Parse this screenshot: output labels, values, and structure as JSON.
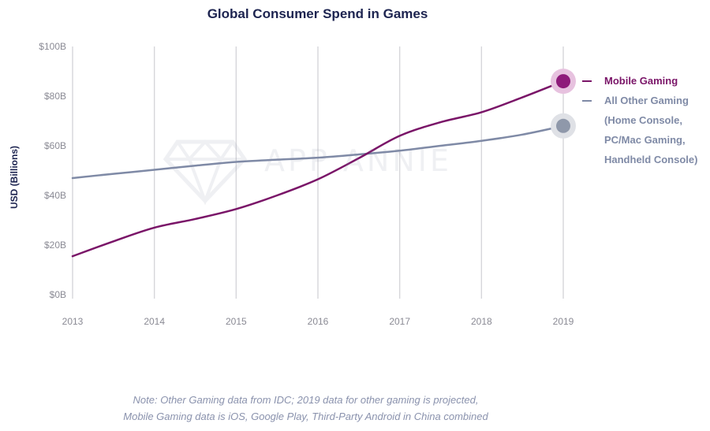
{
  "chart_data": {
    "type": "line",
    "title": "Global Consumer Spend in Games",
    "xlabel": "",
    "ylabel": "USD (Billions)",
    "x": [
      2013,
      2014,
      2015,
      2016,
      2017,
      2018,
      2019
    ],
    "xlim": [
      2013,
      2019
    ],
    "ylim": [
      0,
      100
    ],
    "x_tick_labels": [
      "2013",
      "2014",
      "2015",
      "2016",
      "2017",
      "2018",
      "2019"
    ],
    "y_tick_values": [
      0,
      20,
      40,
      60,
      80,
      100
    ],
    "y_tick_labels": [
      "$0B",
      "$20B",
      "$40B",
      "$60B",
      "$80B",
      "$100B"
    ],
    "grid": "vertical",
    "legend_position": "right",
    "series": [
      {
        "name": "Mobile Gaming",
        "color": "#7a1568",
        "marker_color": "#8e1a7a",
        "marker_halo": "#e7c2df",
        "x": [
          2013,
          2013.5,
          2014,
          2014.5,
          2015,
          2015.5,
          2016,
          2016.5,
          2017,
          2017.5,
          2018,
          2018.5,
          2019
        ],
        "values": [
          15.5,
          21.5,
          27,
          30.5,
          34.5,
          40,
          46.5,
          55,
          64,
          69.5,
          73.5,
          79.5,
          86
        ]
      },
      {
        "name": "All Other Gaming\n(Home Console,\nPC/Mac Gaming,\nHandheld Console)",
        "color": "#7f8aa6",
        "marker_color": "#8f98aa",
        "marker_halo": "#dfe1e6",
        "x": [
          2013,
          2013.5,
          2014,
          2014.5,
          2015,
          2015.5,
          2016,
          2016.5,
          2017,
          2017.5,
          2018,
          2018.5,
          2019
        ],
        "values": [
          47,
          48.7,
          50.3,
          52,
          53.5,
          54.4,
          55.2,
          56.5,
          58,
          60,
          62,
          64.5,
          68
        ]
      }
    ],
    "annotations": [
      "Note: Other Gaming data from IDC; 2019 data for other gaming is projected,",
      "Mobile Gaming data is iOS, Google Play, Third-Party Android in China combined"
    ]
  },
  "watermark": {
    "text": "APP ANNIE",
    "icon": "diamond-logo-icon"
  }
}
